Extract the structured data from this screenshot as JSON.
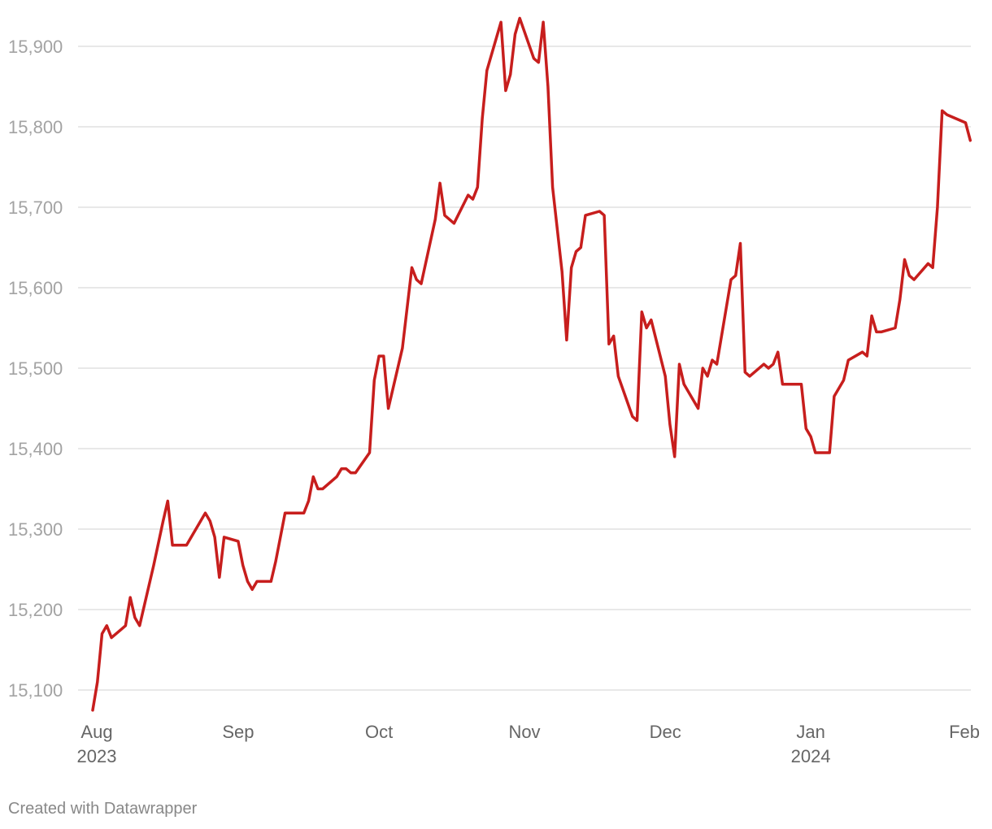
{
  "footer": "Created with Datawrapper",
  "chart_data": {
    "type": "line",
    "title": "",
    "xlabel": "",
    "ylabel": "",
    "color": "#c71e1d",
    "grid": true,
    "xlim": [
      "2023-08-01",
      "2024-02-01"
    ],
    "ylim": [
      15075,
      15935
    ],
    "y_ticks": [
      {
        "value": 15100,
        "label": "15,100"
      },
      {
        "value": 15200,
        "label": "15,200"
      },
      {
        "value": 15300,
        "label": "15,300"
      },
      {
        "value": 15400,
        "label": "15,400"
      },
      {
        "value": 15500,
        "label": "15,500"
      },
      {
        "value": 15600,
        "label": "15,600"
      },
      {
        "value": 15700,
        "label": "15,700"
      },
      {
        "value": 15800,
        "label": "15,800"
      },
      {
        "value": 15900,
        "label": "15,900"
      }
    ],
    "x_ticks": [
      {
        "date": "2023-08-01",
        "label": "Aug",
        "sublabel": "2023"
      },
      {
        "date": "2023-09-01",
        "label": "Sep",
        "sublabel": ""
      },
      {
        "date": "2023-10-01",
        "label": "Oct",
        "sublabel": ""
      },
      {
        "date": "2023-11-01",
        "label": "Nov",
        "sublabel": ""
      },
      {
        "date": "2023-12-01",
        "label": "Dec",
        "sublabel": ""
      },
      {
        "date": "2024-01-01",
        "label": "Jan",
        "sublabel": "2024"
      },
      {
        "date": "2024-02-01",
        "label": "Feb",
        "sublabel": ""
      }
    ],
    "series": [
      {
        "points": [
          [
            "2023-08-01",
            15075
          ],
          [
            "2023-08-02",
            15110
          ],
          [
            "2023-08-03",
            15170
          ],
          [
            "2023-08-04",
            15180
          ],
          [
            "2023-08-05",
            15165
          ],
          [
            "2023-08-07",
            15175
          ],
          [
            "2023-08-08",
            15180
          ],
          [
            "2023-08-09",
            15215
          ],
          [
            "2023-08-10",
            15190
          ],
          [
            "2023-08-11",
            15180
          ],
          [
            "2023-08-14",
            15255
          ],
          [
            "2023-08-16",
            15310
          ],
          [
            "2023-08-17",
            15335
          ],
          [
            "2023-08-18",
            15280
          ],
          [
            "2023-08-21",
            15280
          ],
          [
            "2023-08-25",
            15320
          ],
          [
            "2023-08-26",
            15310
          ],
          [
            "2023-08-27",
            15290
          ],
          [
            "2023-08-28",
            15240
          ],
          [
            "2023-08-29",
            15290
          ],
          [
            "2023-09-01",
            15285
          ],
          [
            "2023-09-02",
            15255
          ],
          [
            "2023-09-03",
            15235
          ],
          [
            "2023-09-04",
            15225
          ],
          [
            "2023-09-05",
            15235
          ],
          [
            "2023-09-08",
            15235
          ],
          [
            "2023-09-09",
            15260
          ],
          [
            "2023-09-11",
            15320
          ],
          [
            "2023-09-15",
            15320
          ],
          [
            "2023-09-16",
            15335
          ],
          [
            "2023-09-17",
            15365
          ],
          [
            "2023-09-18",
            15350
          ],
          [
            "2023-09-19",
            15350
          ],
          [
            "2023-09-22",
            15365
          ],
          [
            "2023-09-23",
            15375
          ],
          [
            "2023-09-24",
            15375
          ],
          [
            "2023-09-25",
            15370
          ],
          [
            "2023-09-26",
            15370
          ],
          [
            "2023-09-29",
            15395
          ],
          [
            "2023-09-30",
            15485
          ],
          [
            "2023-10-01",
            15515
          ],
          [
            "2023-10-02",
            15515
          ],
          [
            "2023-10-03",
            15450
          ],
          [
            "2023-10-06",
            15525
          ],
          [
            "2023-10-08",
            15625
          ],
          [
            "2023-10-09",
            15610
          ],
          [
            "2023-10-10",
            15605
          ],
          [
            "2023-10-13",
            15685
          ],
          [
            "2023-10-14",
            15730
          ],
          [
            "2023-10-15",
            15690
          ],
          [
            "2023-10-17",
            15680
          ],
          [
            "2023-10-20",
            15715
          ],
          [
            "2023-10-21",
            15710
          ],
          [
            "2023-10-22",
            15725
          ],
          [
            "2023-10-23",
            15810
          ],
          [
            "2023-10-24",
            15870
          ],
          [
            "2023-10-27",
            15930
          ],
          [
            "2023-10-28",
            15845
          ],
          [
            "2023-10-29",
            15865
          ],
          [
            "2023-10-30",
            15915
          ],
          [
            "2023-10-31",
            15935
          ],
          [
            "2023-11-03",
            15885
          ],
          [
            "2023-11-04",
            15880
          ],
          [
            "2023-11-05",
            15930
          ],
          [
            "2023-11-06",
            15850
          ],
          [
            "2023-11-07",
            15725
          ],
          [
            "2023-11-09",
            15620
          ],
          [
            "2023-11-10",
            15535
          ],
          [
            "2023-11-11",
            15625
          ],
          [
            "2023-11-12",
            15645
          ],
          [
            "2023-11-13",
            15650
          ],
          [
            "2023-11-14",
            15690
          ],
          [
            "2023-11-17",
            15695
          ],
          [
            "2023-11-18",
            15690
          ],
          [
            "2023-11-19",
            15530
          ],
          [
            "2023-11-20",
            15540
          ],
          [
            "2023-11-21",
            15490
          ],
          [
            "2023-11-24",
            15440
          ],
          [
            "2023-11-25",
            15435
          ],
          [
            "2023-11-26",
            15570
          ],
          [
            "2023-11-27",
            15550
          ],
          [
            "2023-11-28",
            15560
          ],
          [
            "2023-12-01",
            15490
          ],
          [
            "2023-12-02",
            15430
          ],
          [
            "2023-12-03",
            15390
          ],
          [
            "2023-12-04",
            15505
          ],
          [
            "2023-12-05",
            15480
          ],
          [
            "2023-12-08",
            15450
          ],
          [
            "2023-12-09",
            15500
          ],
          [
            "2023-12-10",
            15490
          ],
          [
            "2023-12-11",
            15510
          ],
          [
            "2023-12-12",
            15505
          ],
          [
            "2023-12-15",
            15610
          ],
          [
            "2023-12-16",
            15615
          ],
          [
            "2023-12-17",
            15655
          ],
          [
            "2023-12-18",
            15495
          ],
          [
            "2023-12-19",
            15490
          ],
          [
            "2023-12-22",
            15505
          ],
          [
            "2023-12-23",
            15500
          ],
          [
            "2023-12-24",
            15505
          ],
          [
            "2023-12-25",
            15520
          ],
          [
            "2023-12-26",
            15480
          ],
          [
            "2023-12-30",
            15480
          ],
          [
            "2023-12-31",
            15425
          ],
          [
            "2024-01-01",
            15415
          ],
          [
            "2024-01-02",
            15395
          ],
          [
            "2024-01-05",
            15395
          ],
          [
            "2024-01-06",
            15465
          ],
          [
            "2024-01-08",
            15485
          ],
          [
            "2024-01-09",
            15510
          ],
          [
            "2024-01-12",
            15520
          ],
          [
            "2024-01-13",
            15515
          ],
          [
            "2024-01-14",
            15565
          ],
          [
            "2024-01-15",
            15545
          ],
          [
            "2024-01-16",
            15545
          ],
          [
            "2024-01-19",
            15550
          ],
          [
            "2024-01-20",
            15585
          ],
          [
            "2024-01-21",
            15635
          ],
          [
            "2024-01-22",
            15615
          ],
          [
            "2024-01-23",
            15610
          ],
          [
            "2024-01-26",
            15630
          ],
          [
            "2024-01-27",
            15625
          ],
          [
            "2024-01-28",
            15700
          ],
          [
            "2024-01-29",
            15820
          ],
          [
            "2024-01-30",
            15815
          ],
          [
            "2024-02-03",
            15805
          ],
          [
            "2024-02-04",
            15783
          ]
        ]
      }
    ]
  }
}
